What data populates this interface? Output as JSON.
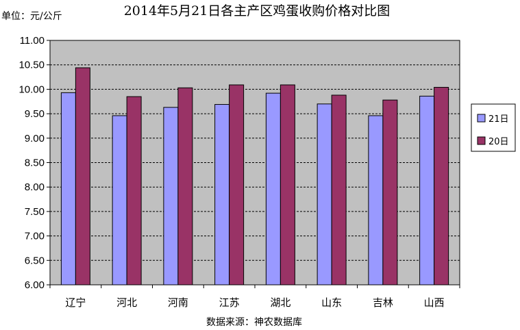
{
  "chart_data": {
    "type": "bar",
    "title": "2014年5月21日各主产区鸡蛋收购价格对比图",
    "unit_label": "单位：元/公斤",
    "source": "数据来源：神农数据库",
    "categories": [
      "辽宁",
      "河北",
      "河南",
      "江苏",
      "湖北",
      "山东",
      "吉林",
      "山西"
    ],
    "series": [
      {
        "name": "21日",
        "color": "#9999ff",
        "values": [
          9.93,
          9.46,
          9.63,
          9.69,
          9.92,
          9.7,
          9.46,
          9.86
        ]
      },
      {
        "name": "20日",
        "color": "#993366",
        "values": [
          10.44,
          9.85,
          10.03,
          10.09,
          10.09,
          9.88,
          9.78,
          10.04
        ]
      }
    ],
    "ylim": [
      6.0,
      11.0
    ],
    "yticks": [
      "6.00",
      "6.50",
      "7.00",
      "7.50",
      "8.00",
      "8.50",
      "9.00",
      "9.50",
      "10.00",
      "10.50",
      "11.00"
    ],
    "grid": true,
    "legend_position": "right",
    "plot_background": "#c0c0c0"
  }
}
